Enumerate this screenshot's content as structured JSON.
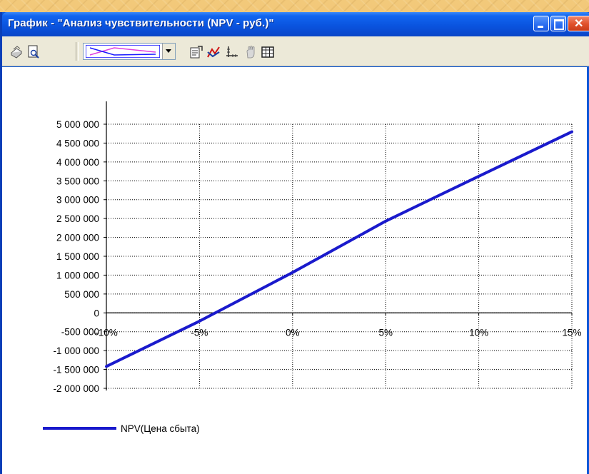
{
  "window": {
    "title": "График - \"Анализ чувствительности (NPV - руб.)\""
  },
  "toolbar": {
    "icons": [
      "print-icon",
      "print-preview-icon",
      "chart-type-select",
      "properties-icon",
      "line-chart-icon",
      "axes-icon",
      "hand-icon",
      "table-icon"
    ]
  },
  "colors": {
    "series": "#1a1acc",
    "preview_magenta": "#e040e0",
    "preview_blue": "#1a1aff"
  },
  "chart_data": {
    "type": "line",
    "xlabel": "",
    "ylabel": "",
    "x_tick_labels": [
      "-10%",
      "-5%",
      "0%",
      "5%",
      "10%",
      "15%"
    ],
    "x_ticks": [
      -10,
      -5,
      0,
      5,
      10,
      15
    ],
    "y_tick_labels": [
      "5 000 000",
      "4 500 000",
      "4 000 000",
      "3 500 000",
      "3 000 000",
      "2 500 000",
      "2 000 000",
      "1 500 000",
      "1 000 000",
      "500 000",
      "0",
      "-500 000",
      "-1 000 000",
      "-1 500 000",
      "-2 000 000"
    ],
    "y_ticks": [
      5000000,
      4500000,
      4000000,
      3500000,
      3000000,
      2500000,
      2000000,
      1500000,
      1000000,
      500000,
      0,
      -500000,
      -1000000,
      -1500000,
      -2000000
    ],
    "xlim": [
      -10,
      15
    ],
    "ylim": [
      -2000000,
      5000000
    ],
    "grid": true,
    "legend_position": "bottom-left",
    "series": [
      {
        "name": "NPV(Цена сбыта)",
        "x": [
          -10,
          -5,
          0,
          5,
          10,
          15
        ],
        "y": [
          -1420000,
          -220000,
          1070000,
          2430000,
          3620000,
          4800000
        ]
      }
    ]
  }
}
